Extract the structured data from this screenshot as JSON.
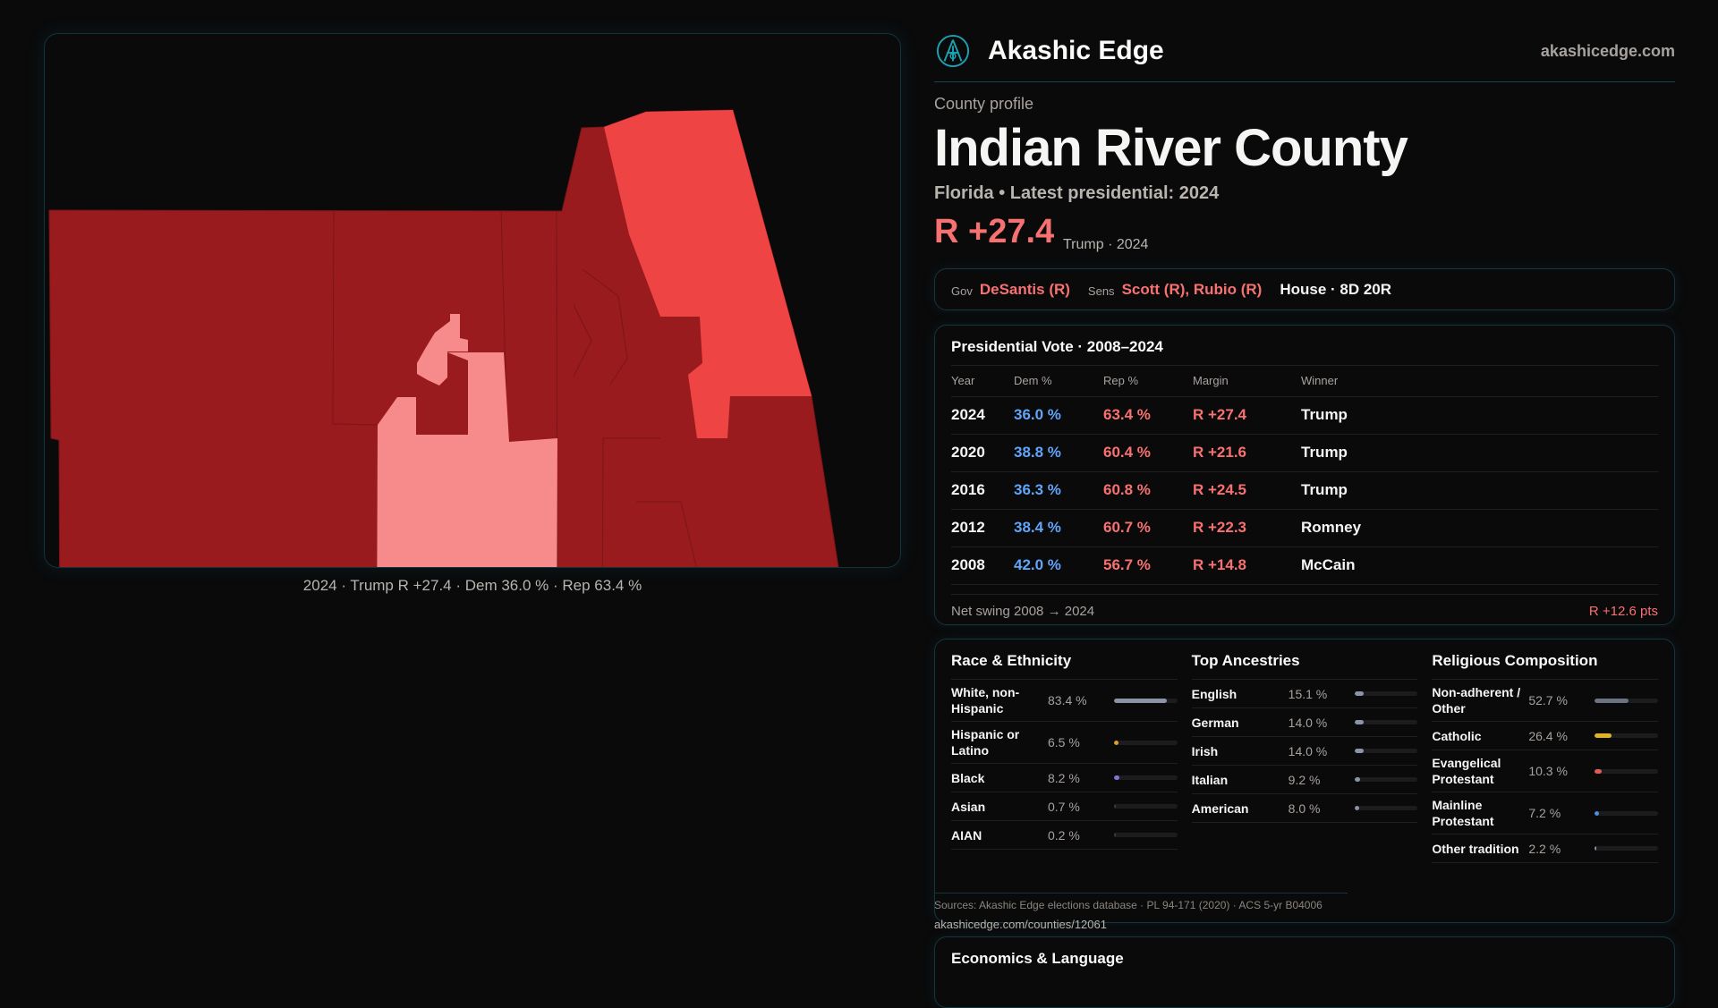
{
  "map": {
    "caption": "2024 · Trump R +27.4 · Dem 36.0 % · Rep 63.4 %",
    "colors": {
      "strong_r": "#991b1e",
      "r": "#ef4444",
      "lean_r": "#f78b8b",
      "d": "#60a5fa"
    }
  },
  "header": {
    "brand": "Akashic Edge",
    "site": "akashicedge.com",
    "logo_icon": "akashic-edge-logo"
  },
  "profile": {
    "kicker": "County profile",
    "title": "Indian River County",
    "subtitle": "Florida • Latest presidential: 2024",
    "margin": "R +27.4",
    "margin_note": "Trump · 2024"
  },
  "officials": {
    "gov_label": "Gov",
    "gov": "DeSantis (R)",
    "sens_label": "Sens",
    "sens": "Scott (R), Rubio (R)",
    "house": "House · 8D 20R"
  },
  "presidential": {
    "title": "Presidential Vote · 2008–2024",
    "columns": [
      "Year",
      "Dem %",
      "Rep %",
      "Margin",
      "Winner"
    ],
    "rows": [
      {
        "year": "2024",
        "dem": "36.0 %",
        "rep": "63.4 %",
        "margin": "R +27.4",
        "winner": "Trump"
      },
      {
        "year": "2020",
        "dem": "38.8 %",
        "rep": "60.4 %",
        "margin": "R +21.6",
        "winner": "Trump"
      },
      {
        "year": "2016",
        "dem": "36.3 %",
        "rep": "60.8 %",
        "margin": "R +24.5",
        "winner": "Trump"
      },
      {
        "year": "2012",
        "dem": "38.4 %",
        "rep": "60.7 %",
        "margin": "R +22.3",
        "winner": "Romney"
      },
      {
        "year": "2008",
        "dem": "42.0 %",
        "rep": "56.7 %",
        "margin": "R +14.8",
        "winner": "McCain"
      }
    ],
    "swing_label": "Net swing 2008 → 2024",
    "swing_value": "R +12.6 pts"
  },
  "race": {
    "title": "Race & Ethnicity",
    "items": [
      {
        "name": "White, non-Hispanic",
        "pct": "83.4 %",
        "value": 83.4,
        "color": "#8b93a7"
      },
      {
        "name": "Hispanic or Latino",
        "pct": "6.5 %",
        "value": 6.5,
        "color": "#e0a020"
      },
      {
        "name": "Black",
        "pct": "8.2 %",
        "value": 8.2,
        "color": "#8b6fd6"
      },
      {
        "name": "Asian",
        "pct": "0.7 %",
        "value": 0.7,
        "color": "#3a3a40"
      },
      {
        "name": "AIAN",
        "pct": "0.2 %",
        "value": 0.2,
        "color": "#3a3a40"
      }
    ]
  },
  "ancestry": {
    "title": "Top Ancestries",
    "items": [
      {
        "name": "English",
        "pct": "15.1 %",
        "value": 15.1,
        "color": "#8b93a7"
      },
      {
        "name": "German",
        "pct": "14.0 %",
        "value": 14.0,
        "color": "#8b93a7"
      },
      {
        "name": "Irish",
        "pct": "14.0 %",
        "value": 14.0,
        "color": "#8b93a7"
      },
      {
        "name": "Italian",
        "pct": "9.2 %",
        "value": 9.2,
        "color": "#8b93a7"
      },
      {
        "name": "American",
        "pct": "8.0 %",
        "value": 8.0,
        "color": "#8b93a7"
      }
    ]
  },
  "religion": {
    "title": "Religious Composition",
    "items": [
      {
        "name": "Non-adherent / Other",
        "pct": "52.7 %",
        "value": 52.7,
        "color": "#6b7280"
      },
      {
        "name": "Catholic",
        "pct": "26.4 %",
        "value": 26.4,
        "color": "#e0b324"
      },
      {
        "name": "Evangelical Protestant",
        "pct": "10.3 %",
        "value": 10.3,
        "color": "#e05a5a"
      },
      {
        "name": "Mainline Protestant",
        "pct": "7.2 %",
        "value": 7.2,
        "color": "#4a8fe0"
      },
      {
        "name": "Other tradition",
        "pct": "2.2 %",
        "value": 2.2,
        "color": "#8b93a7"
      }
    ]
  },
  "sources": "Sources: Akashic Edge elections database · PL 94-171 (2020) · ACS 5-yr B04006",
  "source_link": "akashicedge.com/counties/12061",
  "economics": {
    "title": "Economics & Language"
  }
}
